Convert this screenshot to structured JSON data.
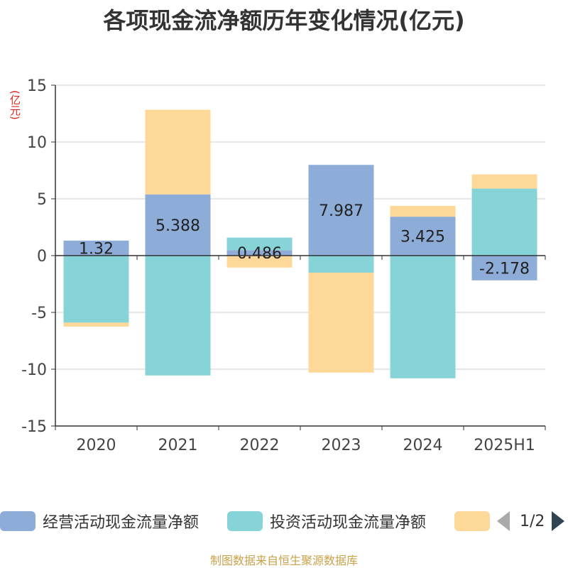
{
  "title": "各项现金流净额历年变化情况(亿元)",
  "y_unit": "(亿元)",
  "source": "制图数据来自恒生聚源数据库",
  "pager": {
    "text": "1/2"
  },
  "colors": {
    "operating": "#8eacd8",
    "investing": "#87d4d8",
    "financing": "#fdd898",
    "axis": "#333333",
    "grid": "#cccccc"
  },
  "chart_data": {
    "type": "bar",
    "stacked": true,
    "title": "各项现金流净额历年变化情况(亿元)",
    "ylabel": "(亿元)",
    "ylim": [
      -15,
      15
    ],
    "yticks": [
      15,
      10,
      5,
      0,
      -5,
      -10,
      -15
    ],
    "grid": true,
    "legend_position": "bottom",
    "categories": [
      "2020",
      "2021",
      "2022",
      "2023",
      "2024",
      "2025H1"
    ],
    "series": [
      {
        "name": "经营活动现金流量净额",
        "color": "#8eacd8",
        "values": [
          1.32,
          5.388,
          0.486,
          7.987,
          3.425,
          -2.178
        ],
        "labels": [
          "1.32",
          "5.388",
          "0.486",
          "7.987",
          "3.425",
          "-2.178"
        ]
      },
      {
        "name": "投资活动现金流量净额",
        "color": "#87d4d8",
        "values": [
          -5.9,
          -10.55,
          1.1,
          -1.5,
          -10.8,
          5.9
        ]
      },
      {
        "name": "",
        "color": "#fdd898",
        "values": [
          -0.35,
          7.45,
          -1.05,
          -8.8,
          0.95,
          1.25
        ]
      }
    ]
  },
  "legend": [
    {
      "label": "经营活动现金流量净额",
      "color": "#8eacd8"
    },
    {
      "label": "投资活动现金流量净额",
      "color": "#87d4d8"
    },
    {
      "label": "",
      "color": "#fdd898"
    }
  ]
}
